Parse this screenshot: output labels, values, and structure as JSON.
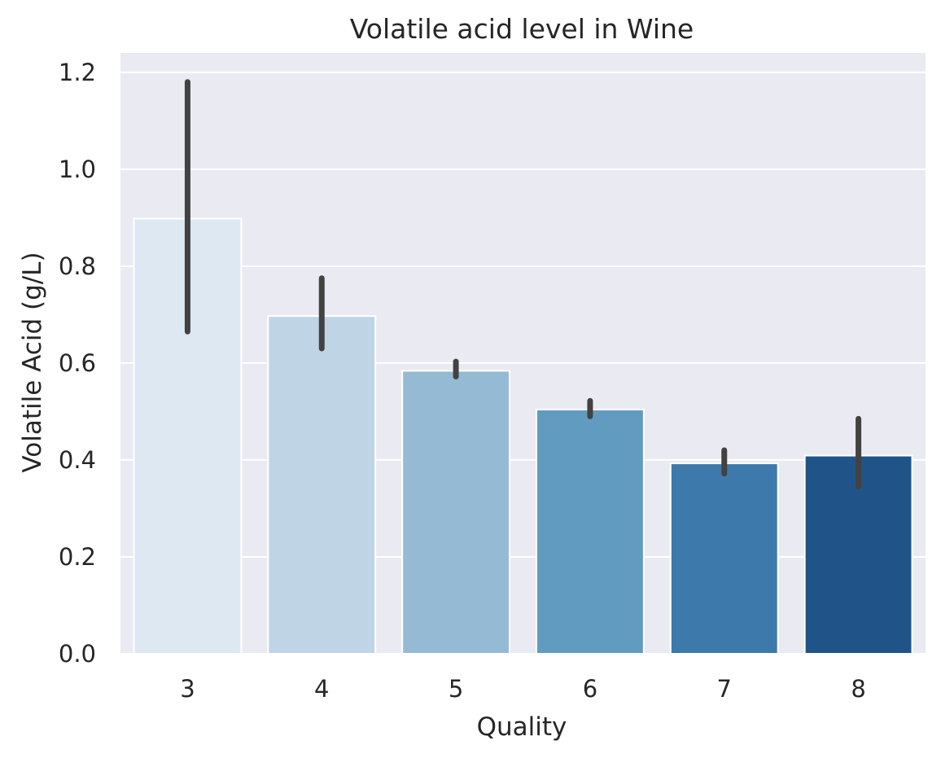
{
  "chart_data": {
    "type": "bar",
    "title": "Volatile acid level in Wine",
    "xlabel": "Quality",
    "ylabel": "Volatile Acid (g/L)",
    "categories": [
      "3",
      "4",
      "5",
      "6",
      "7",
      "8"
    ],
    "values": [
      0.898,
      0.697,
      0.584,
      0.504,
      0.393,
      0.409
    ],
    "error_bars": [
      [
        0.665,
        1.18
      ],
      [
        0.63,
        0.775
      ],
      [
        0.572,
        0.603
      ],
      [
        0.49,
        0.522
      ],
      [
        0.372,
        0.42
      ],
      [
        0.345,
        0.485
      ]
    ],
    "ylim": [
      0,
      1.24
    ],
    "yticks": [
      "0.0",
      "0.2",
      "0.4",
      "0.6",
      "0.8",
      "1.0",
      "1.2"
    ],
    "grid": true,
    "colors": {
      "bars": [
        "#dee8f2",
        "#bfd5e6",
        "#94bbd3",
        "#629bc0",
        "#3d79aa",
        "#205489"
      ],
      "background": "#eaeaf2",
      "grid": "#ffffff",
      "error_bar": "#424242"
    }
  }
}
